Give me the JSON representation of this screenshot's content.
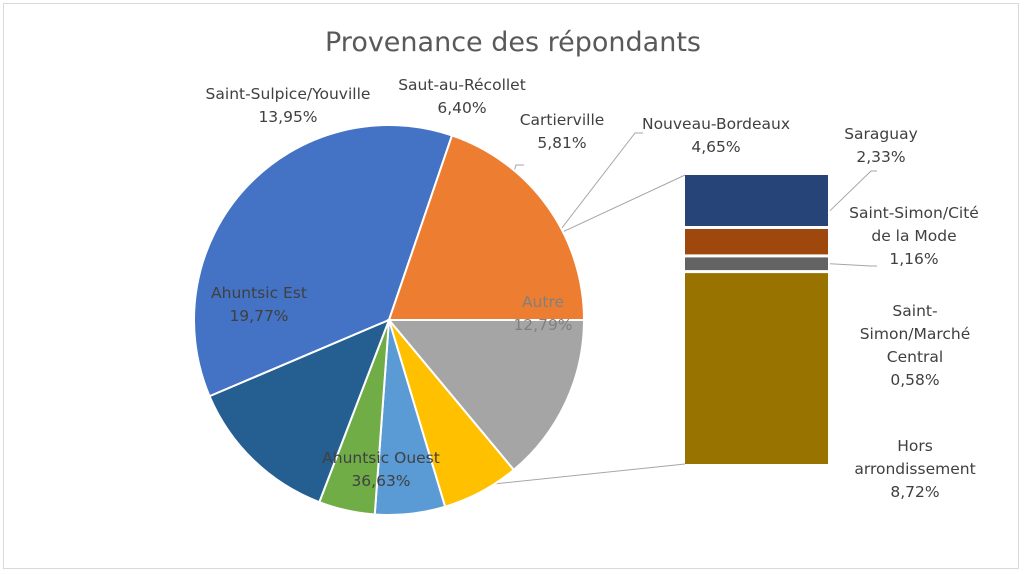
{
  "chart_data": {
    "type": "bar-of-pie",
    "title": "Provenance des répondants",
    "pie": [
      {
        "name": "Ahuntsic Ouest",
        "value": "36,63%",
        "pct": 36.63,
        "color": "#4472c4"
      },
      {
        "name": "Ahuntsic Est",
        "value": "19,77%",
        "pct": 19.77,
        "color": "#ed7d31"
      },
      {
        "name": "Saint-Sulpice/Youville",
        "value": "13,95%",
        "pct": 13.95,
        "color": "#a5a5a5"
      },
      {
        "name": "Saut-au-Récollet",
        "value": "6,40%",
        "pct": 6.4,
        "color": "#ffc000"
      },
      {
        "name": "Cartierville",
        "value": "5,81%",
        "pct": 5.81,
        "color": "#5b9bd5"
      },
      {
        "name": "Nouveau-Bordeaux",
        "value": "4,65%",
        "pct": 4.65,
        "color": "#70ad47"
      },
      {
        "name": "Autre",
        "value": "12,79%",
        "pct": 12.79,
        "color": "#255e91"
      }
    ],
    "bar": [
      {
        "name": "Saraguay",
        "value": "2,33%",
        "pct": 2.33,
        "color": "#264478"
      },
      {
        "name": "Saint-Simon/Cité de la Mode",
        "value": "1,16%",
        "pct": 1.16,
        "color": "#9e480e"
      },
      {
        "name": "Saint-Simon/Marché Central",
        "value": "0,58%",
        "pct": 0.58,
        "color": "#636363"
      },
      {
        "name": "Hors arrondissement",
        "value": "8,72%",
        "pct": 8.72,
        "color": "#997300"
      }
    ]
  }
}
